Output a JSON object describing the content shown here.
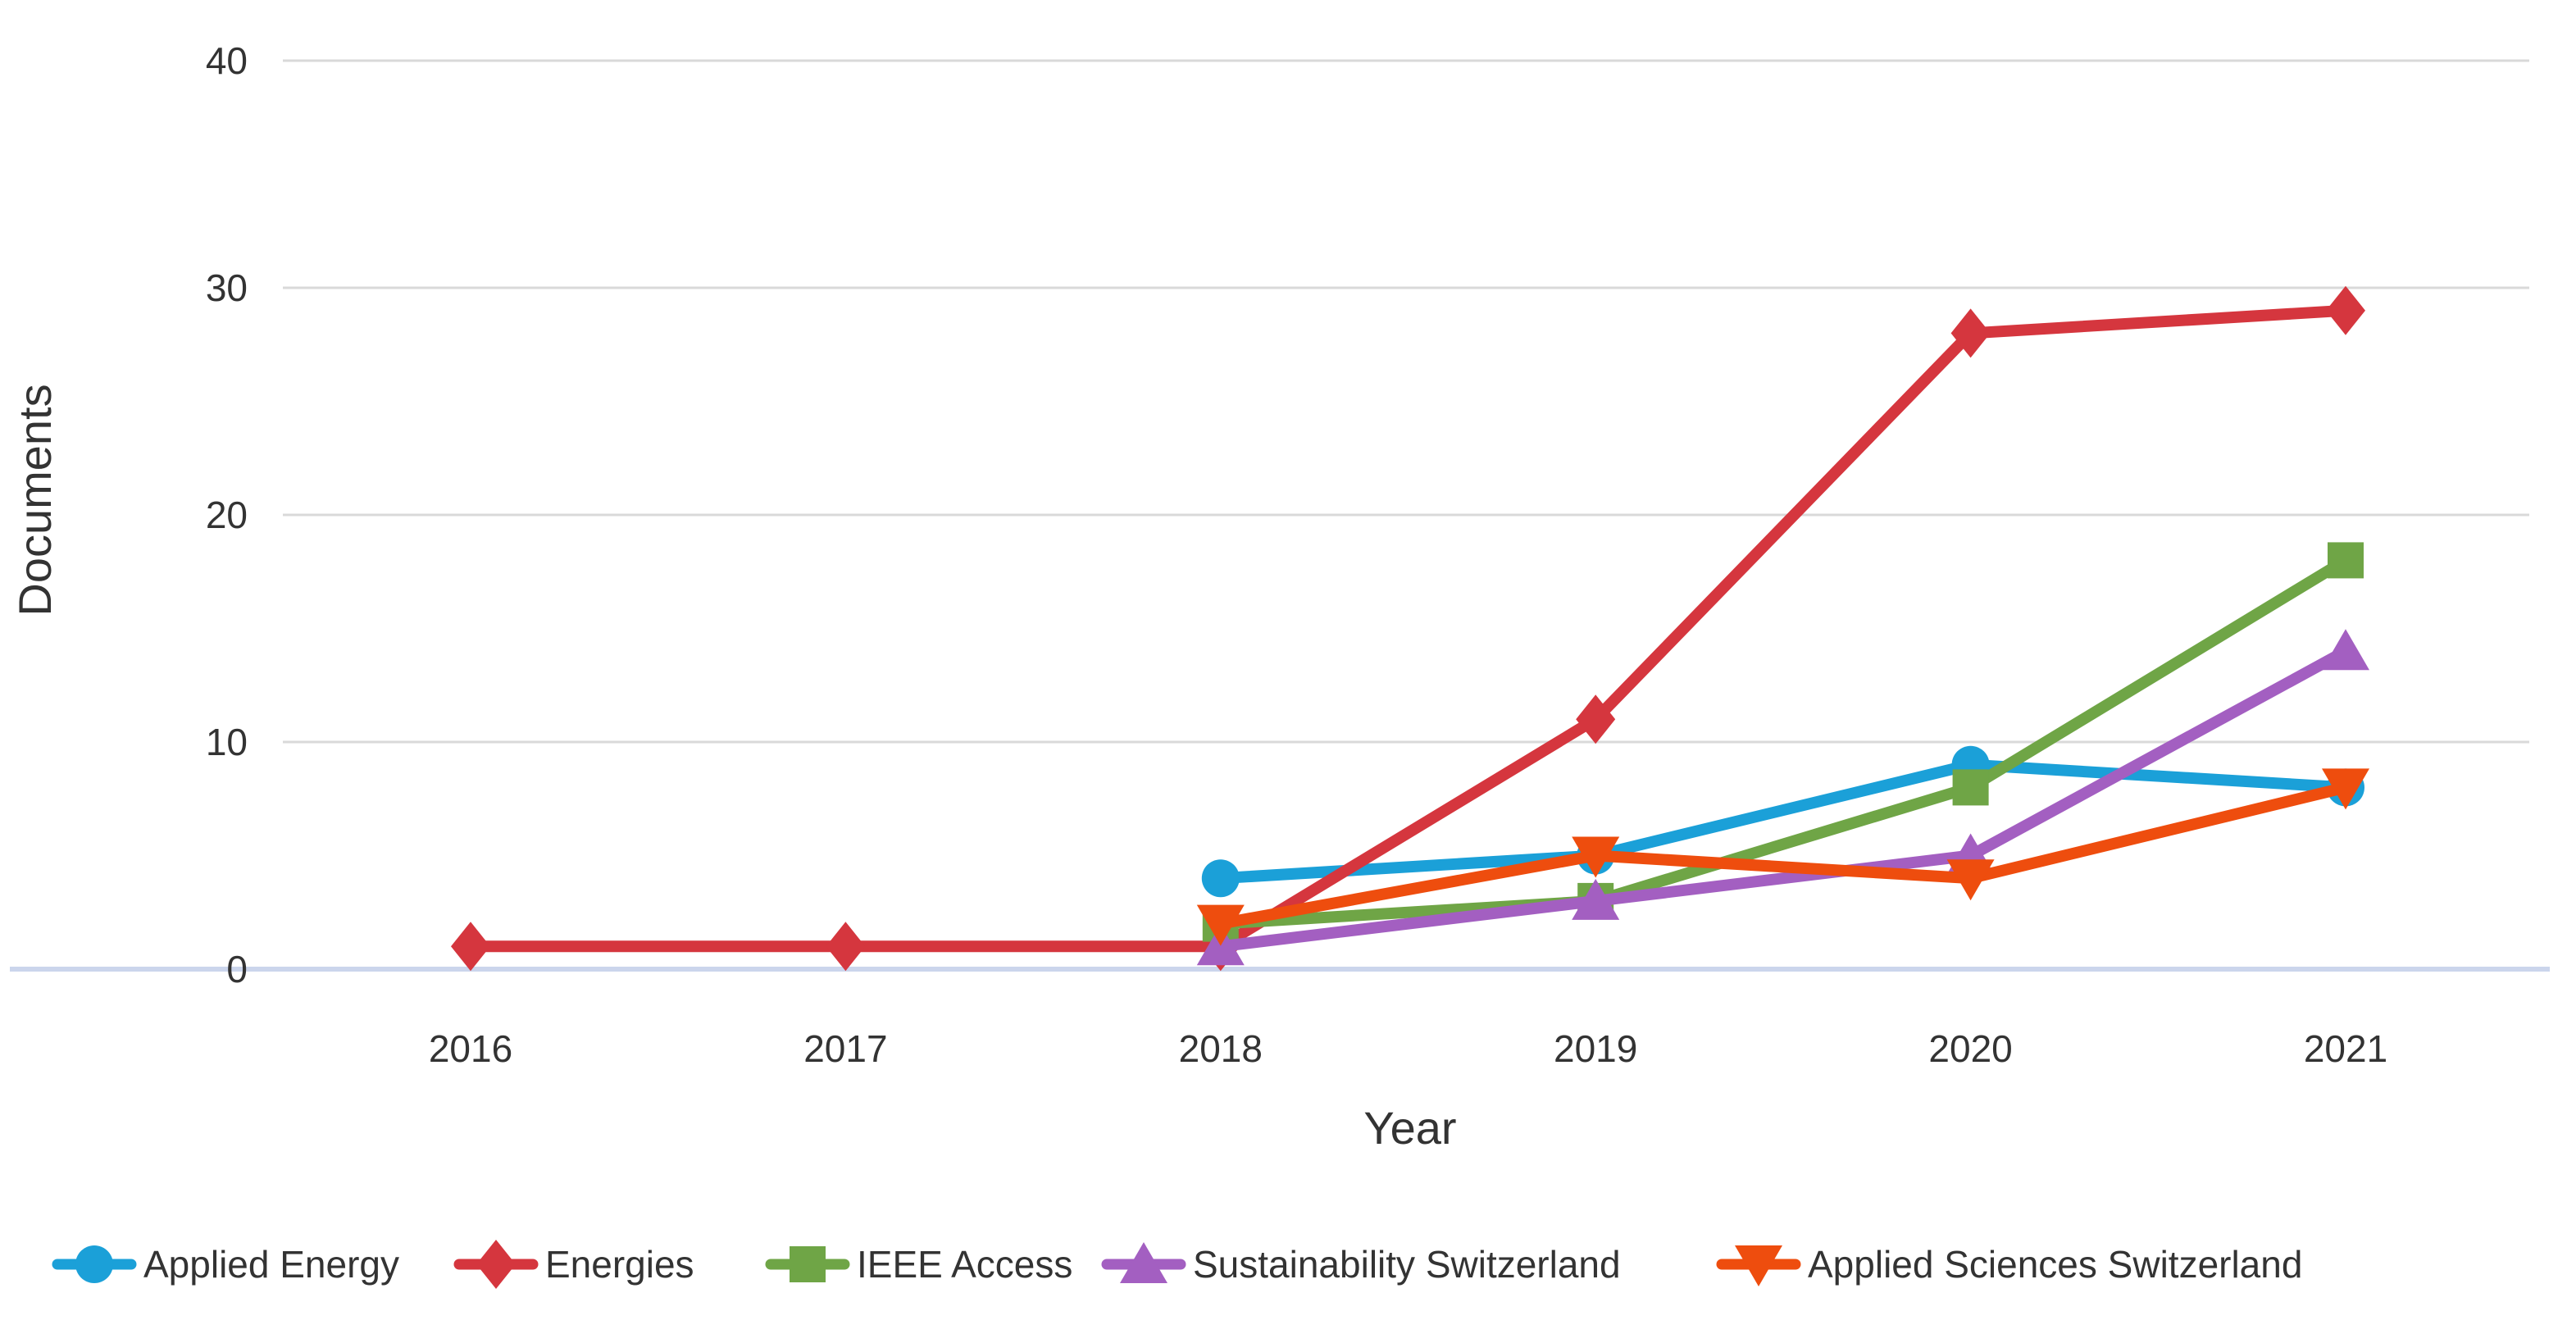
{
  "figure": {
    "background": "#ffffff"
  },
  "chart_data": {
    "type": "line",
    "title": "",
    "xlabel": "Year",
    "ylabel": "Documents",
    "categories": [
      "2016",
      "2017",
      "2018",
      "2019",
      "2020",
      "2021"
    ],
    "yticks": [
      0,
      10,
      20,
      30,
      40
    ],
    "ylim": [
      0,
      40
    ],
    "grid": "horizontal",
    "legend_position": "bottom",
    "series": [
      {
        "name": "Applied Energy",
        "color": "#1BA0D8",
        "marker": "circle",
        "values": [
          null,
          null,
          4,
          5,
          9,
          8
        ]
      },
      {
        "name": "Energies",
        "color": "#D5363E",
        "marker": "diamond",
        "values": [
          1,
          1,
          1,
          11,
          28,
          29
        ]
      },
      {
        "name": "IEEE Access",
        "color": "#6FA546",
        "marker": "square",
        "values": [
          null,
          null,
          2,
          3,
          8,
          18
        ]
      },
      {
        "name": "Sustainability Switzerland",
        "color": "#A35FC1",
        "marker": "triangle-up",
        "values": [
          null,
          null,
          1,
          3,
          5,
          14
        ]
      },
      {
        "name": "Applied Sciences Switzerland",
        "color": "#EE4D0E",
        "marker": "triangle-down",
        "values": [
          null,
          null,
          2,
          5,
          4,
          8
        ]
      }
    ],
    "colors": {
      "gridline": "#D9D9D9",
      "baseline": "#CBD5EC",
      "text": "#333333"
    }
  }
}
